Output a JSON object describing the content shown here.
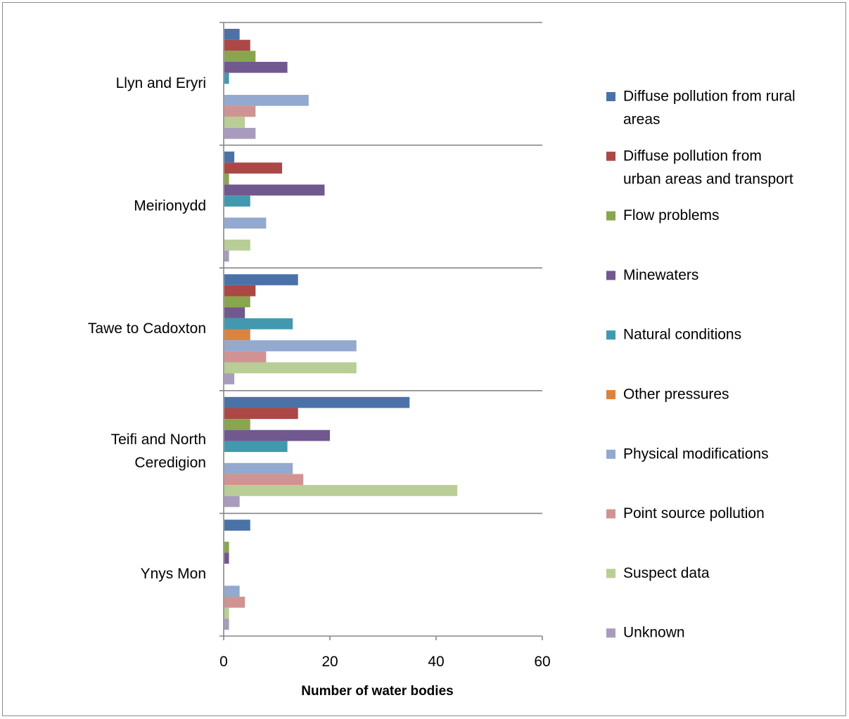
{
  "chart_data": {
    "type": "bar",
    "orientation": "horizontal",
    "title": "",
    "xlabel": "Number of water bodies",
    "ylabel": "",
    "xlim": [
      0,
      60
    ],
    "xticks": [
      0,
      20,
      40,
      60
    ],
    "grid": false,
    "legend_position": "right",
    "categories": [
      [
        "Llyn and Eryri"
      ],
      [
        "Meirionydd"
      ],
      [
        "Tawe to Cadoxton"
      ],
      [
        "Teifi and North",
        "Ceredigion"
      ],
      [
        "Ynys Mon"
      ]
    ],
    "series": [
      {
        "name": [
          "Diffuse pollution from rural",
          "areas"
        ],
        "color": "#4a72a8",
        "values": [
          3,
          2,
          14,
          35,
          5
        ]
      },
      {
        "name": [
          "Diffuse pollution from",
          "urban areas and transport"
        ],
        "color": "#ab4846",
        "values": [
          5,
          11,
          6,
          14,
          0
        ]
      },
      {
        "name": [
          "Flow problems"
        ],
        "color": "#89a54e",
        "values": [
          6,
          1,
          5,
          5,
          1
        ]
      },
      {
        "name": [
          "Minewaters"
        ],
        "color": "#71588f",
        "values": [
          12,
          19,
          4,
          20,
          1
        ]
      },
      {
        "name": [
          "Natural conditions"
        ],
        "color": "#4198af",
        "values": [
          1,
          5,
          13,
          12,
          0
        ]
      },
      {
        "name": [
          "Other pressures"
        ],
        "color": "#db843d",
        "values": [
          0,
          0,
          5,
          0,
          0
        ]
      },
      {
        "name": [
          "Physical modifications"
        ],
        "color": "#93a9cf",
        "values": [
          16,
          8,
          25,
          13,
          3
        ]
      },
      {
        "name": [
          "Point source pollution"
        ],
        "color": "#d19392",
        "values": [
          6,
          0,
          8,
          15,
          4
        ]
      },
      {
        "name": [
          "Suspect data"
        ],
        "color": "#b9cd96",
        "values": [
          4,
          5,
          25,
          44,
          1
        ]
      },
      {
        "name": [
          "Unknown"
        ],
        "color": "#a99bbd",
        "values": [
          6,
          1,
          2,
          3,
          1
        ]
      }
    ]
  }
}
